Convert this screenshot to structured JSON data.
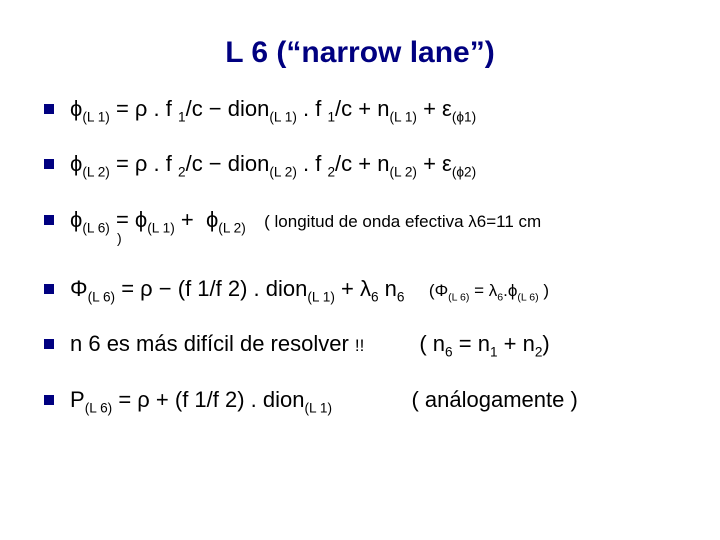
{
  "colors": {
    "title": "#000080",
    "bullet": "#000080",
    "text": "#000000",
    "background": "#ffffff"
  },
  "typography": {
    "title_fontsize_pt": 22,
    "body_fontsize_pt": 17,
    "small_fontsize_pt": 13,
    "font_family": "Arial"
  },
  "title": "L 6 (“narrow lane”)",
  "items": [
    {
      "html": "ϕ<sub>(L 1)</sub> = ρ . f <sub>1</sub>/c − dion<sub>(L 1)</sub> . f <sub>1</sub>/c + n<sub>(L 1)</sub> + ε<sub>(ϕ1)</sub>"
    },
    {
      "html": "ϕ<sub>(L 2)</sub> = ρ . f <sub>2</sub>/c − dion<sub>(L 2)</sub> . f <sub>2</sub>/c + n<sub>(L 2)</sub> + ε<sub>(ϕ2)</sub>"
    },
    {
      "html": "ϕ<sub>(L 6)</sub> = ϕ<sub>(L 1)</sub> +  ϕ<sub>(L 2)</sub>   <span class=\"note\">( longitud de onda efectiva λ6=11 cm</span>",
      "under": ")",
      "gap_large": true
    },
    {
      "html": "Φ<sub>(L 6)</sub> = ρ − (f 1/f 2) . dion<sub>(L 1)</sub> + λ<sub>6</sub> n<sub>6</sub>    <span class=\"small\">(Φ<sub>(L 6)</sub> = λ<sub>6</sub>.ϕ<sub>(L 6)</sub> )</span>"
    },
    {
      "html": "n 6 es más difícil de resolver <span class=\"small\">!!</span>         ( n<sub>6</sub> = n<sub>1</sub> + n<sub>2</sub>)",
      "tight": true
    },
    {
      "html": "P<sub>(L 6)</sub> = ρ + (f 1/f 2) . dion<sub>(L 1)</sub>             ( análogamente )"
    }
  ]
}
